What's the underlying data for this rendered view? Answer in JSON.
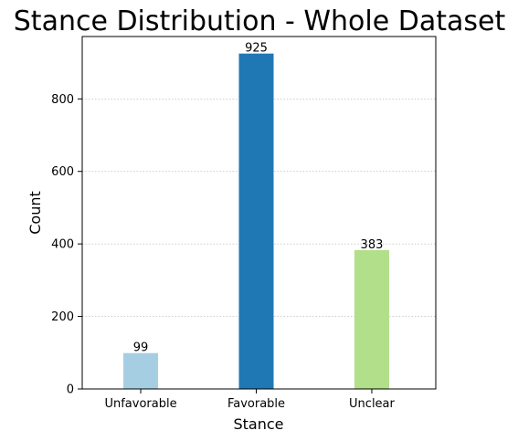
{
  "chart_data": {
    "type": "bar",
    "title": "Stance Distribution - Whole Dataset",
    "xlabel": "Stance",
    "ylabel": "Count",
    "categories": [
      "Unfavorable",
      "Favorable",
      "Unclear"
    ],
    "values": [
      99,
      925,
      383
    ],
    "data_labels": [
      "99",
      "925",
      "383"
    ],
    "colors": [
      "#a6cee3",
      "#1f78b4",
      "#b2df8a"
    ],
    "ylim": [
      0,
      972
    ],
    "yticks": [
      0,
      200,
      400,
      600,
      800
    ],
    "ytick_labels": [
      "0",
      "200",
      "400",
      "600",
      "800"
    ],
    "grid": "y-dotted",
    "legend": "none"
  }
}
